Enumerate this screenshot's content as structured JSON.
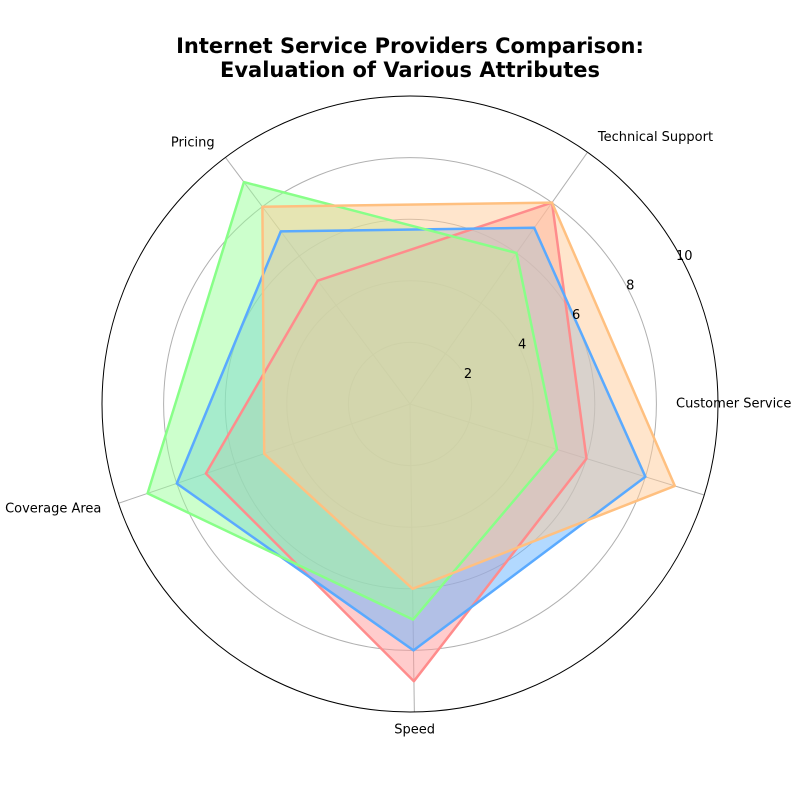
{
  "chart_data": {
    "type": "radar",
    "title_line1": "Internet Service Providers Comparison:",
    "title_line2": "Evaluation of Various Attributes",
    "categories": [
      "Customer Service",
      "Technical Support",
      "Pricing",
      "Coverage Area",
      "Speed"
    ],
    "rlim": [
      0,
      10
    ],
    "rticks": [
      "2",
      "4",
      "6",
      "8",
      "10"
    ],
    "grid": true,
    "legend": "none",
    "series": [
      {
        "color": "#ff8c8c",
        "fill": "#ff9999",
        "values": [
          6,
          8,
          5,
          7,
          9
        ]
      },
      {
        "color": "#5aaaff",
        "fill": "#66b3ff",
        "values": [
          8,
          7,
          7,
          8,
          8
        ]
      },
      {
        "color": "#88ff88",
        "fill": "#99ff99",
        "values": [
          5,
          6,
          9,
          9,
          7
        ]
      },
      {
        "color": "#ffc080",
        "fill": "#ffcc99",
        "values": [
          9,
          8,
          8,
          5,
          6
        ]
      }
    ]
  }
}
